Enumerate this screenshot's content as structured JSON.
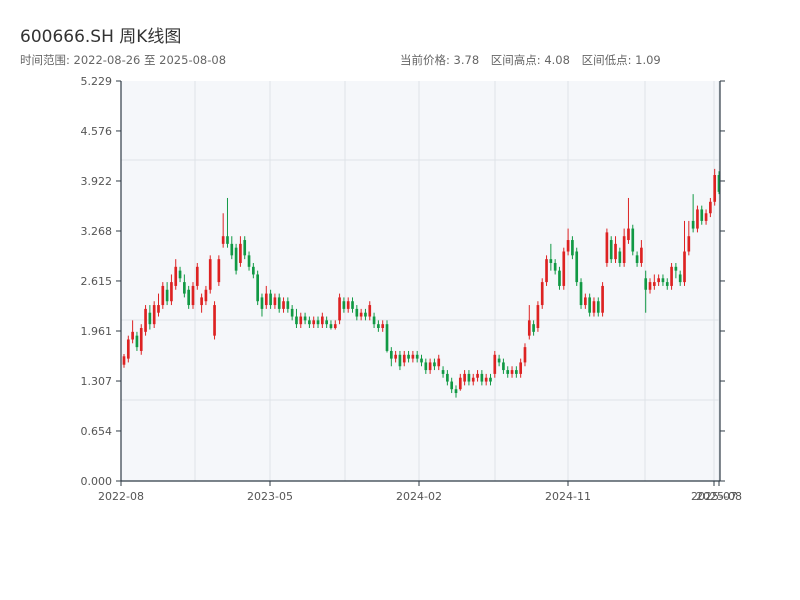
{
  "header": {
    "title": "600666.SH 周K线图",
    "range_label": "时间范围: 2022-08-26 至 2025-08-08",
    "current_price_label": "当前价格: 3.78",
    "high_label": "区间高点: 4.08",
    "low_label": "区间低点: 1.09"
  },
  "colors": {
    "up": "#dd2222",
    "down": "#119944",
    "plot_bg": "#f5f7fa",
    "grid": "#dfe3e8",
    "axis": "#2f3b46"
  },
  "chart_data": {
    "type": "candlestick",
    "title": "600666.SH 周K线图",
    "y_ticks": [
      0.0,
      0.654,
      1.307,
      1.961,
      2.615,
      3.268,
      3.922,
      4.576,
      5.229
    ],
    "ylim": [
      0,
      5.229
    ],
    "x_ticks": [
      "2022-08",
      "2023-05",
      "2024-02",
      "2024-11",
      "2025-07",
      "2025-08"
    ],
    "grid": true,
    "candles": [
      {
        "o": 1.52,
        "c": 1.63,
        "h": 1.66,
        "l": 1.48,
        "up": true
      },
      {
        "o": 1.6,
        "c": 1.85,
        "h": 1.9,
        "l": 1.55,
        "up": true
      },
      {
        "o": 1.85,
        "c": 1.95,
        "h": 2.1,
        "l": 1.8,
        "up": true
      },
      {
        "o": 1.9,
        "c": 1.75,
        "h": 1.95,
        "l": 1.7,
        "up": false
      },
      {
        "o": 1.7,
        "c": 2.0,
        "h": 2.05,
        "l": 1.65,
        "up": true
      },
      {
        "o": 1.95,
        "c": 2.25,
        "h": 2.3,
        "l": 1.9,
        "up": true
      },
      {
        "o": 2.2,
        "c": 2.05,
        "h": 2.3,
        "l": 1.98,
        "up": false
      },
      {
        "o": 2.05,
        "c": 2.3,
        "h": 2.35,
        "l": 2.0,
        "up": true
      },
      {
        "o": 2.2,
        "c": 2.3,
        "h": 2.45,
        "l": 2.15,
        "up": true
      },
      {
        "o": 2.3,
        "c": 2.55,
        "h": 2.6,
        "l": 2.25,
        "up": true
      },
      {
        "o": 2.5,
        "c": 2.35,
        "h": 2.6,
        "l": 2.3,
        "up": false
      },
      {
        "o": 2.35,
        "c": 2.6,
        "h": 2.7,
        "l": 2.3,
        "up": true
      },
      {
        "o": 2.55,
        "c": 2.8,
        "h": 2.9,
        "l": 2.5,
        "up": true
      },
      {
        "o": 2.75,
        "c": 2.65,
        "h": 2.8,
        "l": 2.6,
        "up": false
      },
      {
        "o": 2.6,
        "c": 2.45,
        "h": 2.7,
        "l": 2.4,
        "up": false
      },
      {
        "o": 2.5,
        "c": 2.3,
        "h": 2.55,
        "l": 2.25,
        "up": false
      },
      {
        "o": 2.3,
        "c": 2.55,
        "h": 2.6,
        "l": 2.25,
        "up": true
      },
      {
        "o": 2.55,
        "c": 2.8,
        "h": 2.85,
        "l": 2.5,
        "up": true
      },
      {
        "o": 2.3,
        "c": 2.4,
        "h": 2.45,
        "l": 2.2,
        "up": true
      },
      {
        "o": 2.35,
        "c": 2.5,
        "h": 2.55,
        "l": 2.3,
        "up": true
      },
      {
        "o": 2.5,
        "c": 2.9,
        "h": 2.95,
        "l": 2.45,
        "up": true
      },
      {
        "o": 1.9,
        "c": 2.3,
        "h": 2.35,
        "l": 1.85,
        "up": true
      },
      {
        "o": 2.6,
        "c": 2.9,
        "h": 2.95,
        "l": 2.55,
        "up": true
      },
      {
        "o": 3.1,
        "c": 3.2,
        "h": 3.5,
        "l": 3.05,
        "up": true
      },
      {
        "o": 3.2,
        "c": 3.1,
        "h": 3.7,
        "l": 3.05,
        "up": false
      },
      {
        "o": 3.1,
        "c": 2.95,
        "h": 3.2,
        "l": 2.9,
        "up": false
      },
      {
        "o": 3.05,
        "c": 2.75,
        "h": 3.1,
        "l": 2.7,
        "up": false
      },
      {
        "o": 2.85,
        "c": 3.1,
        "h": 3.2,
        "l": 2.8,
        "up": true
      },
      {
        "o": 3.15,
        "c": 2.95,
        "h": 3.2,
        "l": 2.9,
        "up": false
      },
      {
        "o": 2.95,
        "c": 2.8,
        "h": 3.0,
        "l": 2.75,
        "up": false
      },
      {
        "o": 2.8,
        "c": 2.7,
        "h": 2.85,
        "l": 2.65,
        "up": false
      },
      {
        "o": 2.7,
        "c": 2.35,
        "h": 2.75,
        "l": 2.3,
        "up": false
      },
      {
        "o": 2.4,
        "c": 2.25,
        "h": 2.45,
        "l": 2.15,
        "up": false
      },
      {
        "o": 2.3,
        "c": 2.45,
        "h": 2.55,
        "l": 2.25,
        "up": true
      },
      {
        "o": 2.45,
        "c": 2.3,
        "h": 2.5,
        "l": 2.25,
        "up": false
      },
      {
        "o": 2.3,
        "c": 2.4,
        "h": 2.45,
        "l": 2.25,
        "up": true
      },
      {
        "o": 2.4,
        "c": 2.25,
        "h": 2.45,
        "l": 2.2,
        "up": false
      },
      {
        "o": 2.25,
        "c": 2.35,
        "h": 2.4,
        "l": 2.2,
        "up": true
      },
      {
        "o": 2.35,
        "c": 2.25,
        "h": 2.4,
        "l": 2.2,
        "up": false
      },
      {
        "o": 2.25,
        "c": 2.15,
        "h": 2.3,
        "l": 2.1,
        "up": false
      },
      {
        "o": 2.15,
        "c": 2.05,
        "h": 2.25,
        "l": 2.0,
        "up": false
      },
      {
        "o": 2.05,
        "c": 2.15,
        "h": 2.2,
        "l": 2.0,
        "up": true
      },
      {
        "o": 2.15,
        "c": 2.1,
        "h": 2.2,
        "l": 2.05,
        "up": false
      },
      {
        "o": 2.1,
        "c": 2.05,
        "h": 2.15,
        "l": 2.0,
        "up": false
      },
      {
        "o": 2.05,
        "c": 2.1,
        "h": 2.15,
        "l": 2.0,
        "up": true
      },
      {
        "o": 2.1,
        "c": 2.05,
        "h": 2.15,
        "l": 2.0,
        "up": false
      },
      {
        "o": 2.05,
        "c": 2.15,
        "h": 2.2,
        "l": 2.0,
        "up": true
      },
      {
        "o": 2.1,
        "c": 2.05,
        "h": 2.15,
        "l": 2.0,
        "up": false
      },
      {
        "o": 2.05,
        "c": 2.0,
        "h": 2.1,
        "l": 1.98,
        "up": false
      },
      {
        "o": 2.0,
        "c": 2.05,
        "h": 2.1,
        "l": 1.98,
        "up": true
      },
      {
        "o": 2.1,
        "c": 2.4,
        "h": 2.45,
        "l": 2.05,
        "up": true
      },
      {
        "o": 2.35,
        "c": 2.25,
        "h": 2.4,
        "l": 2.2,
        "up": false
      },
      {
        "o": 2.25,
        "c": 2.35,
        "h": 2.4,
        "l": 2.2,
        "up": true
      },
      {
        "o": 2.35,
        "c": 2.25,
        "h": 2.4,
        "l": 2.2,
        "up": false
      },
      {
        "o": 2.25,
        "c": 2.15,
        "h": 2.3,
        "l": 2.1,
        "up": false
      },
      {
        "o": 2.15,
        "c": 2.2,
        "h": 2.25,
        "l": 2.1,
        "up": true
      },
      {
        "o": 2.2,
        "c": 2.15,
        "h": 2.25,
        "l": 2.1,
        "up": false
      },
      {
        "o": 2.15,
        "c": 2.3,
        "h": 2.35,
        "l": 2.1,
        "up": true
      },
      {
        "o": 2.15,
        "c": 2.05,
        "h": 2.2,
        "l": 2.0,
        "up": false
      },
      {
        "o": 2.05,
        "c": 2.0,
        "h": 2.1,
        "l": 1.95,
        "up": false
      },
      {
        "o": 2.0,
        "c": 2.05,
        "h": 2.1,
        "l": 1.95,
        "up": true
      },
      {
        "o": 2.05,
        "c": 1.7,
        "h": 2.1,
        "l": 1.68,
        "up": false
      },
      {
        "o": 1.7,
        "c": 1.6,
        "h": 1.75,
        "l": 1.5,
        "up": false
      },
      {
        "o": 1.6,
        "c": 1.65,
        "h": 1.7,
        "l": 1.55,
        "up": true
      },
      {
        "o": 1.65,
        "c": 1.5,
        "h": 1.7,
        "l": 1.45,
        "up": false
      },
      {
        "o": 1.55,
        "c": 1.65,
        "h": 1.7,
        "l": 1.5,
        "up": true
      },
      {
        "o": 1.65,
        "c": 1.6,
        "h": 1.7,
        "l": 1.55,
        "up": false
      },
      {
        "o": 1.6,
        "c": 1.65,
        "h": 1.7,
        "l": 1.55,
        "up": true
      },
      {
        "o": 1.65,
        "c": 1.6,
        "h": 1.7,
        "l": 1.55,
        "up": false
      },
      {
        "o": 1.6,
        "c": 1.55,
        "h": 1.65,
        "l": 1.5,
        "up": false
      },
      {
        "o": 1.55,
        "c": 1.45,
        "h": 1.6,
        "l": 1.4,
        "up": false
      },
      {
        "o": 1.45,
        "c": 1.55,
        "h": 1.6,
        "l": 1.4,
        "up": true
      },
      {
        "o": 1.55,
        "c": 1.5,
        "h": 1.6,
        "l": 1.45,
        "up": false
      },
      {
        "o": 1.5,
        "c": 1.6,
        "h": 1.65,
        "l": 1.45,
        "up": true
      },
      {
        "o": 1.45,
        "c": 1.4,
        "h": 1.5,
        "l": 1.35,
        "up": false
      },
      {
        "o": 1.4,
        "c": 1.3,
        "h": 1.45,
        "l": 1.25,
        "up": false
      },
      {
        "o": 1.3,
        "c": 1.2,
        "h": 1.35,
        "l": 1.15,
        "up": false
      },
      {
        "o": 1.2,
        "c": 1.15,
        "h": 1.25,
        "l": 1.09,
        "up": false
      },
      {
        "o": 1.2,
        "c": 1.35,
        "h": 1.4,
        "l": 1.18,
        "up": true
      },
      {
        "o": 1.3,
        "c": 1.4,
        "h": 1.45,
        "l": 1.25,
        "up": true
      },
      {
        "o": 1.4,
        "c": 1.3,
        "h": 1.45,
        "l": 1.25,
        "up": false
      },
      {
        "o": 1.3,
        "c": 1.35,
        "h": 1.4,
        "l": 1.25,
        "up": true
      },
      {
        "o": 1.35,
        "c": 1.4,
        "h": 1.45,
        "l": 1.3,
        "up": true
      },
      {
        "o": 1.4,
        "c": 1.3,
        "h": 1.45,
        "l": 1.25,
        "up": false
      },
      {
        "o": 1.3,
        "c": 1.35,
        "h": 1.4,
        "l": 1.25,
        "up": true
      },
      {
        "o": 1.35,
        "c": 1.3,
        "h": 1.4,
        "l": 1.25,
        "up": false
      },
      {
        "o": 1.4,
        "c": 1.65,
        "h": 1.7,
        "l": 1.35,
        "up": true
      },
      {
        "o": 1.6,
        "c": 1.55,
        "h": 1.65,
        "l": 1.5,
        "up": false
      },
      {
        "o": 1.55,
        "c": 1.45,
        "h": 1.6,
        "l": 1.4,
        "up": false
      },
      {
        "o": 1.45,
        "c": 1.4,
        "h": 1.5,
        "l": 1.35,
        "up": false
      },
      {
        "o": 1.4,
        "c": 1.45,
        "h": 1.5,
        "l": 1.35,
        "up": true
      },
      {
        "o": 1.45,
        "c": 1.4,
        "h": 1.5,
        "l": 1.35,
        "up": false
      },
      {
        "o": 1.4,
        "c": 1.55,
        "h": 1.6,
        "l": 1.35,
        "up": true
      },
      {
        "o": 1.55,
        "c": 1.75,
        "h": 1.8,
        "l": 1.5,
        "up": true
      },
      {
        "o": 1.9,
        "c": 2.1,
        "h": 2.3,
        "l": 1.85,
        "up": true
      },
      {
        "o": 2.05,
        "c": 1.95,
        "h": 2.1,
        "l": 1.9,
        "up": false
      },
      {
        "o": 2.0,
        "c": 2.3,
        "h": 2.35,
        "l": 1.95,
        "up": true
      },
      {
        "o": 2.3,
        "c": 2.6,
        "h": 2.65,
        "l": 2.25,
        "up": true
      },
      {
        "o": 2.6,
        "c": 2.9,
        "h": 2.95,
        "l": 2.55,
        "up": true
      },
      {
        "o": 2.9,
        "c": 2.85,
        "h": 3.1,
        "l": 2.75,
        "up": false
      },
      {
        "o": 2.85,
        "c": 2.75,
        "h": 2.9,
        "l": 2.7,
        "up": false
      },
      {
        "o": 2.75,
        "c": 2.55,
        "h": 2.8,
        "l": 2.5,
        "up": false
      },
      {
        "o": 2.55,
        "c": 3.0,
        "h": 3.05,
        "l": 2.5,
        "up": true
      },
      {
        "o": 3.0,
        "c": 3.15,
        "h": 3.3,
        "l": 2.95,
        "up": true
      },
      {
        "o": 3.15,
        "c": 2.95,
        "h": 3.2,
        "l": 2.9,
        "up": false
      },
      {
        "o": 3.0,
        "c": 2.6,
        "h": 3.05,
        "l": 2.55,
        "up": false
      },
      {
        "o": 2.6,
        "c": 2.3,
        "h": 2.65,
        "l": 2.25,
        "up": false
      },
      {
        "o": 2.3,
        "c": 2.4,
        "h": 2.45,
        "l": 2.25,
        "up": true
      },
      {
        "o": 2.4,
        "c": 2.2,
        "h": 2.45,
        "l": 2.15,
        "up": false
      },
      {
        "o": 2.2,
        "c": 2.35,
        "h": 2.4,
        "l": 2.15,
        "up": true
      },
      {
        "o": 2.35,
        "c": 2.2,
        "h": 2.4,
        "l": 2.15,
        "up": false
      },
      {
        "o": 2.2,
        "c": 2.55,
        "h": 2.6,
        "l": 2.15,
        "up": true
      },
      {
        "o": 2.85,
        "c": 3.25,
        "h": 3.3,
        "l": 2.8,
        "up": true
      },
      {
        "o": 3.15,
        "c": 2.9,
        "h": 3.2,
        "l": 2.85,
        "up": false
      },
      {
        "o": 2.9,
        "c": 3.1,
        "h": 3.2,
        "l": 2.85,
        "up": true
      },
      {
        "o": 3.0,
        "c": 2.85,
        "h": 3.05,
        "l": 2.8,
        "up": false
      },
      {
        "o": 2.85,
        "c": 3.2,
        "h": 3.3,
        "l": 2.8,
        "up": true
      },
      {
        "o": 3.15,
        "c": 3.3,
        "h": 3.7,
        "l": 3.1,
        "up": true
      },
      {
        "o": 3.3,
        "c": 3.0,
        "h": 3.35,
        "l": 2.95,
        "up": false
      },
      {
        "o": 2.95,
        "c": 2.85,
        "h": 3.0,
        "l": 2.8,
        "up": false
      },
      {
        "o": 2.85,
        "c": 3.05,
        "h": 3.15,
        "l": 2.8,
        "up": true
      },
      {
        "o": 2.65,
        "c": 2.5,
        "h": 2.75,
        "l": 2.2,
        "up": false
      },
      {
        "o": 2.5,
        "c": 2.6,
        "h": 2.65,
        "l": 2.45,
        "up": true
      },
      {
        "o": 2.55,
        "c": 2.6,
        "h": 2.7,
        "l": 2.5,
        "up": true
      },
      {
        "o": 2.6,
        "c": 2.65,
        "h": 2.7,
        "l": 2.55,
        "up": true
      },
      {
        "o": 2.65,
        "c": 2.6,
        "h": 2.7,
        "l": 2.55,
        "up": false
      },
      {
        "o": 2.6,
        "c": 2.55,
        "h": 2.65,
        "l": 2.5,
        "up": false
      },
      {
        "o": 2.55,
        "c": 2.8,
        "h": 2.85,
        "l": 2.5,
        "up": true
      },
      {
        "o": 2.8,
        "c": 2.75,
        "h": 2.85,
        "l": 2.65,
        "up": false
      },
      {
        "o": 2.7,
        "c": 2.6,
        "h": 2.75,
        "l": 2.55,
        "up": false
      },
      {
        "o": 2.6,
        "c": 3.0,
        "h": 3.4,
        "l": 2.55,
        "up": true
      },
      {
        "o": 3.0,
        "c": 3.2,
        "h": 3.4,
        "l": 2.95,
        "up": true
      },
      {
        "o": 3.4,
        "c": 3.3,
        "h": 3.75,
        "l": 3.25,
        "up": false
      },
      {
        "o": 3.3,
        "c": 3.55,
        "h": 3.6,
        "l": 3.25,
        "up": true
      },
      {
        "o": 3.55,
        "c": 3.4,
        "h": 3.6,
        "l": 3.35,
        "up": false
      },
      {
        "o": 3.4,
        "c": 3.5,
        "h": 3.55,
        "l": 3.35,
        "up": true
      },
      {
        "o": 3.5,
        "c": 3.65,
        "h": 3.7,
        "l": 3.45,
        "up": true
      },
      {
        "o": 3.65,
        "c": 4.0,
        "h": 4.08,
        "l": 3.6,
        "up": true
      },
      {
        "o": 4.0,
        "c": 3.78,
        "h": 4.05,
        "l": 3.75,
        "up": false
      }
    ]
  }
}
